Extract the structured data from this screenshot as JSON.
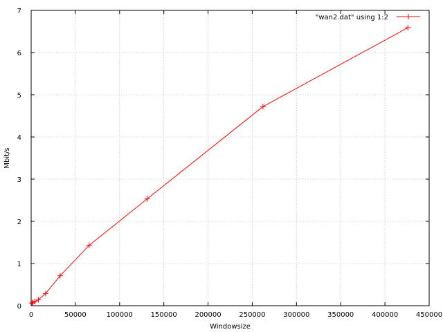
{
  "chart_data": {
    "type": "line",
    "xlabel": "Windowsize",
    "ylabel": "Mbit/s",
    "xlim": [
      0,
      450000
    ],
    "ylim": [
      0,
      7
    ],
    "x_ticks": [
      0,
      50000,
      100000,
      150000,
      200000,
      250000,
      300000,
      350000,
      400000,
      450000
    ],
    "y_ticks": [
      0,
      1,
      2,
      3,
      4,
      5,
      6,
      7
    ],
    "grid": true,
    "legend_position": "top-right",
    "series": [
      {
        "name": "\"wan2.dat\" using 1:2",
        "color": "#ff0000",
        "marker": "plus",
        "points": [
          [
            1024,
            0.06
          ],
          [
            2048,
            0.08
          ],
          [
            4096,
            0.1
          ],
          [
            8192,
            0.14
          ],
          [
            16384,
            0.29
          ],
          [
            32768,
            0.71
          ],
          [
            65536,
            1.43
          ],
          [
            131072,
            2.53
          ],
          [
            262144,
            4.72
          ],
          [
            425984,
            6.59
          ]
        ]
      }
    ]
  }
}
